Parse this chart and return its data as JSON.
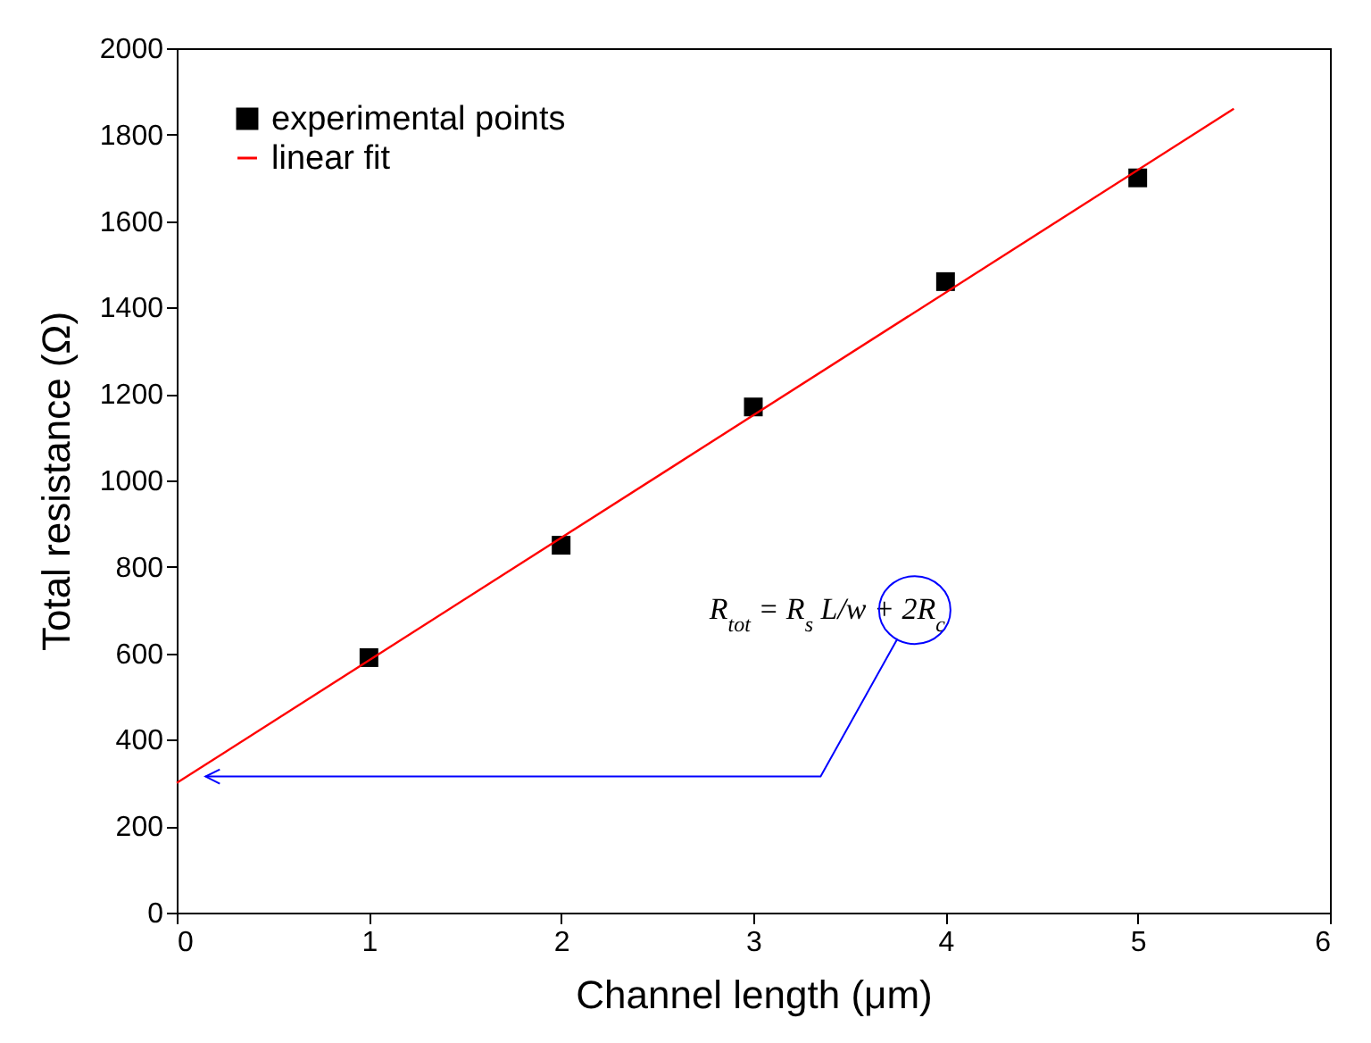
{
  "chart_data": {
    "type": "scatter",
    "xlabel": "Channel length (μm)",
    "ylabel": "Total resistance (Ω)",
    "annotations": [
      "R$_{tot}$ = R$_{s}$ L/w + 2R$_{c}$"
    ],
    "xlim": [
      0,
      6
    ],
    "xticks": [
      0,
      1,
      2,
      3,
      4,
      5,
      6
    ],
    "ylim": [
      0,
      2000
    ],
    "yticks": [
      0,
      200,
      400,
      600,
      800,
      1000,
      1200,
      1400,
      1600,
      1800,
      2000
    ],
    "grid": false,
    "legend": "top left",
    "series": [
      {
        "name": "experimental points",
        "marker": "square",
        "color": "#000000",
        "x": [
          1,
          2,
          3,
          4,
          5
        ],
        "values": [
          590,
          850,
          1170,
          1460,
          1700
        ]
      },
      {
        "name": "linear fit",
        "type": "line",
        "color": "#ff0000",
        "x": [
          0,
          5.5
        ],
        "values": [
          300,
          1860
        ]
      }
    ]
  }
}
